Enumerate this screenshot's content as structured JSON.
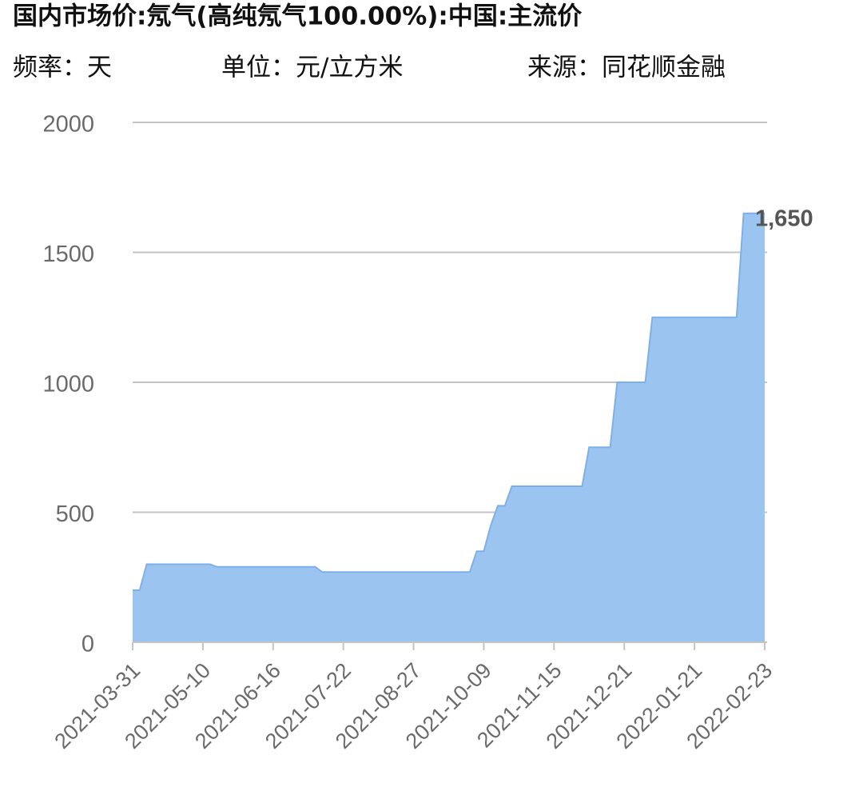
{
  "chart_data": {
    "type": "area",
    "title": "国内市场价:氖气(高纯氖气100.00%):中国:主流价",
    "frequency": "频率：天",
    "unit": "单位：元/立方米",
    "source": "来源：同花顺金融",
    "categories": [
      "2021-03-31",
      null,
      null,
      null,
      null,
      null,
      null,
      null,
      null,
      null,
      "2021-05-10",
      null,
      null,
      null,
      null,
      null,
      null,
      null,
      null,
      null,
      "2021-06-16",
      null,
      null,
      null,
      null,
      null,
      null,
      null,
      null,
      null,
      "2021-07-22",
      null,
      null,
      null,
      null,
      null,
      null,
      null,
      null,
      null,
      "2021-08-27",
      null,
      null,
      null,
      null,
      null,
      null,
      null,
      null,
      null,
      "2021-10-09",
      null,
      null,
      null,
      null,
      null,
      null,
      null,
      null,
      null,
      "2021-11-15",
      null,
      null,
      null,
      null,
      null,
      null,
      null,
      null,
      null,
      "2021-12-21",
      null,
      null,
      null,
      null,
      null,
      null,
      null,
      null,
      null,
      "2022-01-21",
      null,
      null,
      null,
      null,
      null,
      null,
      null,
      null,
      null,
      "2022-02-23"
    ],
    "values": [
      200,
      200,
      300,
      300,
      300,
      300,
      300,
      300,
      300,
      300,
      300,
      300,
      290,
      290,
      290,
      290,
      290,
      290,
      290,
      290,
      290,
      290,
      290,
      290,
      290,
      290,
      290,
      270,
      270,
      270,
      270,
      270,
      270,
      270,
      270,
      270,
      270,
      270,
      270,
      270,
      270,
      270,
      270,
      270,
      270,
      270,
      270,
      270,
      270,
      350,
      350,
      450,
      525,
      525,
      600,
      600,
      600,
      600,
      600,
      600,
      600,
      600,
      600,
      600,
      600,
      750,
      750,
      750,
      750,
      1000,
      1000,
      1000,
      1000,
      1000,
      1250,
      1250,
      1250,
      1250,
      1250,
      1250,
      1250,
      1250,
      1250,
      1250,
      1250,
      1250,
      1250,
      1650,
      1650,
      1650,
      1650
    ],
    "value_labels": [
      null,
      null,
      null,
      null,
      null,
      null,
      null,
      null,
      null,
      null,
      null,
      null,
      null,
      null,
      null,
      null,
      null,
      null,
      null,
      null,
      null,
      null,
      null,
      null,
      null,
      null,
      null,
      null,
      null,
      null,
      null,
      null,
      null,
      null,
      null,
      null,
      null,
      null,
      null,
      null,
      null,
      null,
      null,
      null,
      null,
      null,
      null,
      null,
      null,
      null,
      null,
      null,
      null,
      null,
      null,
      null,
      null,
      null,
      null,
      null,
      null,
      null,
      null,
      null,
      null,
      null,
      null,
      null,
      null,
      null,
      null,
      null,
      null,
      null,
      null,
      null,
      null,
      null,
      null,
      null,
      null,
      null,
      null,
      null,
      null,
      null,
      null,
      null,
      null,
      null,
      "1,650"
    ],
    "color": "#9cc4f1",
    "line_color": "#7db0ea",
    "ylim": [
      0,
      2000
    ],
    "yticks": [
      0,
      500,
      1000,
      1500,
      2000
    ],
    "grid": true
  }
}
